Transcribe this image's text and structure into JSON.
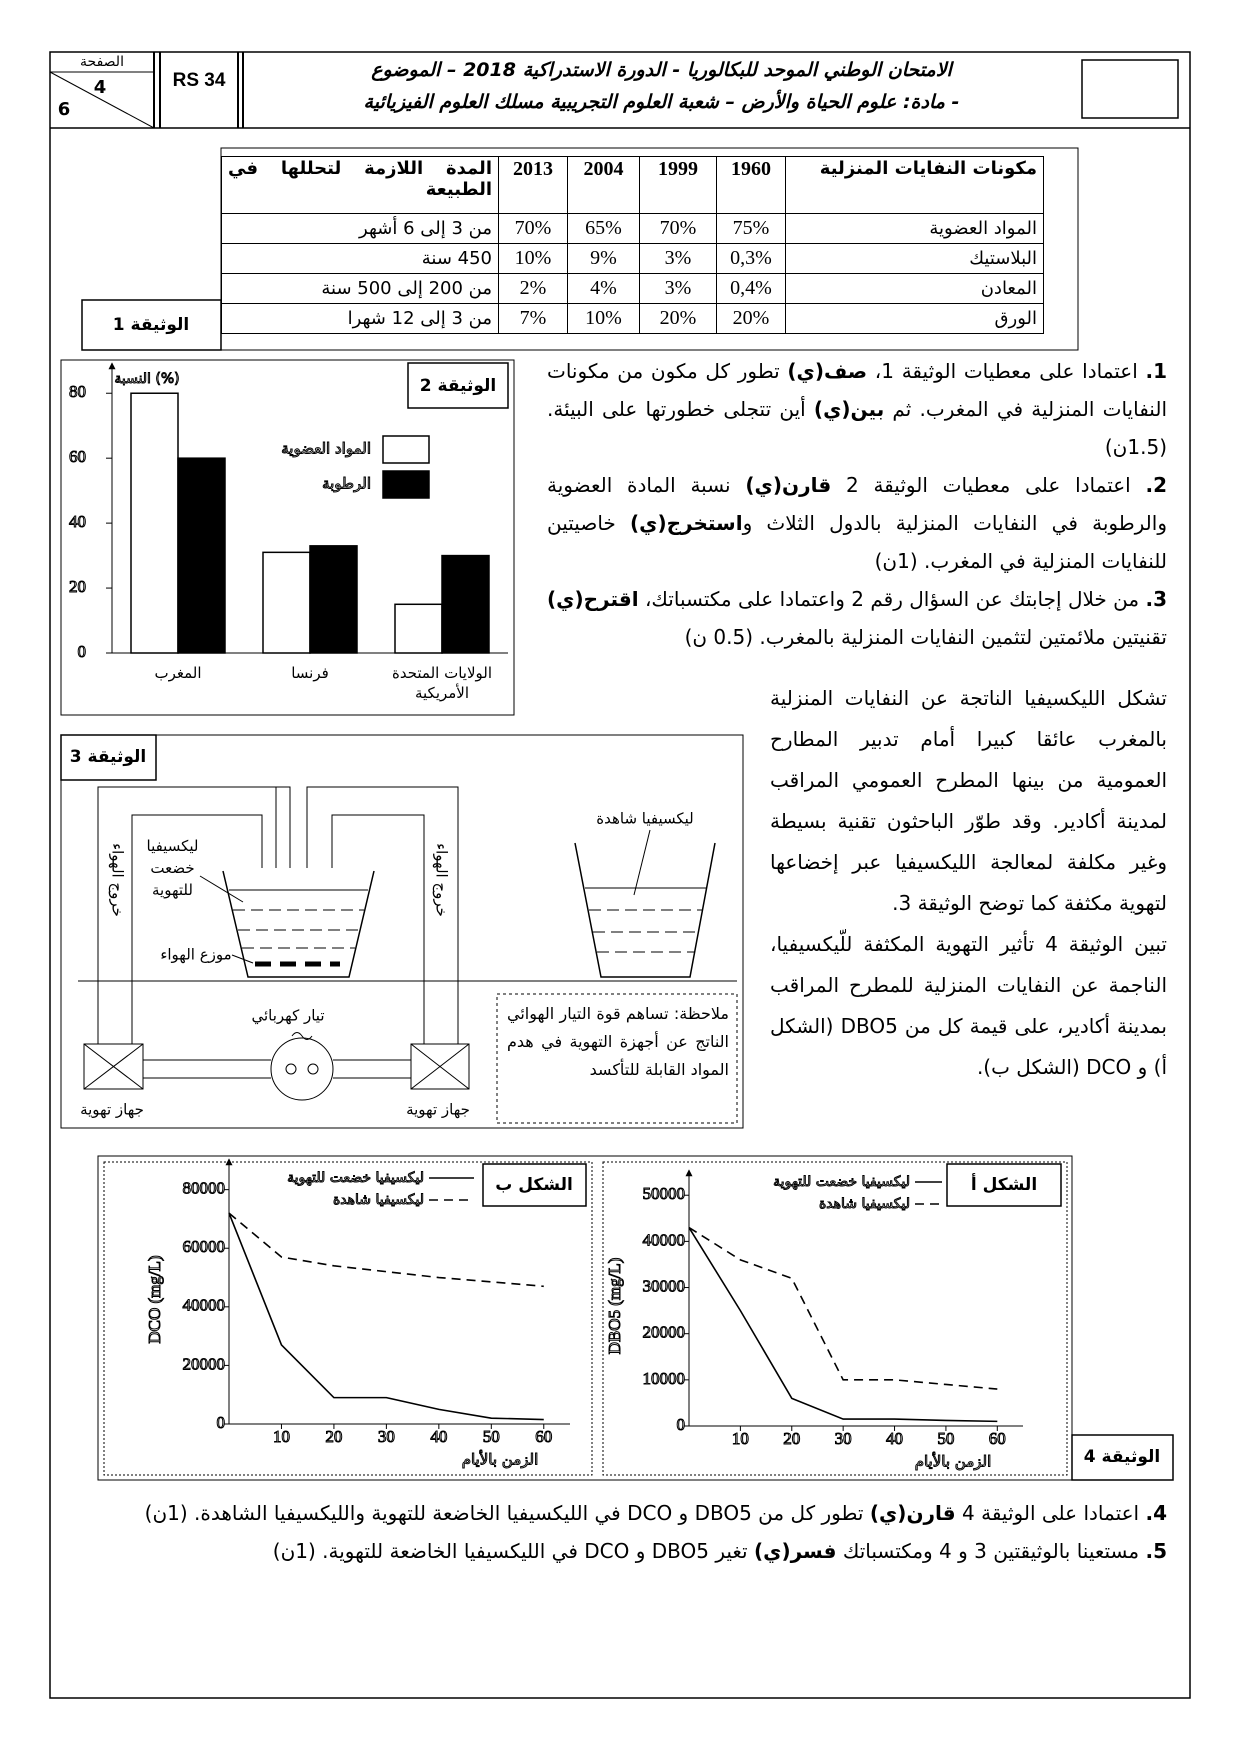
{
  "header": {
    "page_label": "الصفحة",
    "page_number": "4",
    "total_pages": "6",
    "code": "RS 34",
    "title_line1": "الامتحان الوطني الموحد للبكالوريا - الدورة الاستدراكية 2018 – الموضوع",
    "title_line2": "- مادة: علوم الحياة والأرض – شعبة العلوم التجريبية مسلك العلوم الفيزيائية"
  },
  "document1": {
    "label": "الوثيقة 1",
    "columns": [
      "مكونات النفايات المنزلية",
      "1960",
      "1999",
      "2004",
      "2013",
      "المدة اللازمة لتحللها في الطبيعة"
    ],
    "rows": [
      [
        "المواد العضوية",
        "75%",
        "70%",
        "65%",
        "70%",
        "من 3 إلى 6 أشهر"
      ],
      [
        "البلاستيك",
        "0,3%",
        "3%",
        "9%",
        "10%",
        "450 سنة"
      ],
      [
        "المعادن",
        "0,4%",
        "3%",
        "4%",
        "2%",
        "من 200 إلى 500 سنة"
      ],
      [
        "الورق",
        "20%",
        "20%",
        "10%",
        "7%",
        "من 3 إلى 12 شهرا"
      ]
    ]
  },
  "document2": {
    "label": "الوثيقة 2",
    "chart": {
      "type": "bar",
      "ylabel": "النسبة (%)",
      "categories": [
        "المغرب",
        "فرنسا",
        "الولايات المتحدة الأمريكية"
      ],
      "series": [
        {
          "name": "المواد العضوية",
          "color": "#ffffff",
          "values": [
            80,
            31,
            15
          ]
        },
        {
          "name": "الرطوبة",
          "color": "#000000",
          "values": [
            60,
            33,
            30
          ]
        }
      ],
      "ylim": [
        0,
        85
      ],
      "yticks": [
        0,
        20,
        40,
        60,
        80
      ]
    }
  },
  "questions_part1": [
    {
      "number": "1.",
      "segments": [
        "اعتمادا على معطيات الوثيقة 1، ",
        "صف(ي)",
        " تطور كل مكون من مكونات النفايات المنزلية في المغرب. ثم ",
        "بين(ي)",
        " أين تتجلى خطورتها على البيئة. (1.5ن)"
      ]
    },
    {
      "number": "2.",
      "segments": [
        "اعتمادا على معطيات الوثيقة 2 ",
        "قارن(ي)",
        " نسبة المادة العضوية والرطوبة في النفايات المنزلية بالدول الثلاث و",
        "استخرج(ي)",
        " خاصيتين للنفايات المنزلية في المغرب. (1ن)"
      ]
    },
    {
      "number": "3.",
      "segments": [
        "من خلال إجابتك عن السؤال رقم 2 واعتمادا على مكتسباتك، ",
        "اقترح(ي)",
        " تقنيتين ملائمتين لتثمين النفايات المنزلية بالمغرب. (0.5 ن)"
      ]
    }
  ],
  "paragraphs": [
    "تشكل الليكسيفيا الناتجة عن النفايات المنزلية بالمغرب عائقا كبيرا أمام تدبير المطارح العمومية من بينها المطرح العمومي المراقب لمدينة أكادير. وقد طوّر الباحثون تقنية بسيطة وغير مكلفة لمعالجة الليكسيفيا عبر إخضاعها لتهوية مكثفة كما توضح الوثيقة 3.",
    "تبين الوثيقة 4 تأثير التهوية المكثفة للّيكسيفيا، الناجمة عن النفايات المنزلية للمطرح المراقب بمدينة أكادير، على قيمة كل من DBO5 (الشكل أ) و DCO (الشكل ب)."
  ],
  "document3": {
    "label": "الوثيقة 3",
    "treated_leachate": "ليكسيفيا خضعت للتهوية",
    "air_outlet_left": "خروج الهواء",
    "air_outlet_right": "خروج الهواء",
    "air_distributor": "موزع الهواء",
    "electric_current": "تيار كهربائي",
    "aerator_left": "جهاز تهوية",
    "aerator_right": "جهاز تهوية",
    "witness_leachate": "ليكسيفيا شاهدة",
    "note": "ملاحظة: تساهم قوة التيار الهوائي الناتج عن أجهزة التهوية في هدم المواد القابلة للتأكسد"
  },
  "document4": {
    "label": "الوثيقة 4",
    "figure_b": {
      "type": "line",
      "title": "الشكل ب",
      "ylabel": "DCO (mg/L)",
      "xlabel": "الزمن بالأيام",
      "x": [
        0,
        10,
        20,
        30,
        40,
        50,
        60
      ],
      "series": [
        {
          "name": "ليكسيفيا خضعت للتهوية",
          "style": "solid",
          "values": [
            72000,
            27000,
            9000,
            9000,
            5000,
            2000,
            1500
          ]
        },
        {
          "name": "ليكسيفيا شاهدة",
          "style": "dashed",
          "values": [
            72000,
            57000,
            54000,
            52000,
            50000,
            48500,
            47000
          ]
        }
      ],
      "xlim": [
        0,
        65
      ],
      "ylim": [
        0,
        85000
      ],
      "xticks": [
        10,
        20,
        30,
        40,
        50,
        60
      ],
      "yticks": [
        0,
        20000,
        40000,
        60000,
        80000
      ]
    },
    "figure_a": {
      "type": "line",
      "title": "الشكل أ",
      "ylabel": "DBO5 (mg/L)",
      "xlabel": "الزمن بالأيام",
      "x": [
        0,
        10,
        20,
        30,
        40,
        50,
        60
      ],
      "series": [
        {
          "name": "ليكسيفيا خضعت للتهوية",
          "style": "solid",
          "values": [
            43000,
            25000,
            6000,
            1500,
            1500,
            1200,
            1000
          ]
        },
        {
          "name": "ليكسيفيا شاهدة",
          "style": "dashed",
          "values": [
            43000,
            36000,
            32000,
            10000,
            10000,
            9000,
            8000
          ]
        }
      ],
      "xlim": [
        0,
        65
      ],
      "ylim": [
        0,
        52000
      ],
      "xticks": [
        10,
        20,
        30,
        40,
        50,
        60
      ],
      "yticks": [
        0,
        10000,
        20000,
        30000,
        40000,
        50000
      ]
    }
  },
  "questions_part2": [
    {
      "number": "4.",
      "segments": [
        "اعتمادا على الوثيقة 4 ",
        "قارن(ي)",
        " تطور كل من DBO5 و DCO في الليكسيفيا الخاضعة للتهوية والليكسيفيا الشاهدة. (1ن)"
      ]
    },
    {
      "number": "5.",
      "segments": [
        "مستعينا بالوثيقتين 3 و 4 ومكتسباتك ",
        "فسر(ي)",
        " تغير DBO5 و DCO في الليكسيفيا الخاضعة للتهوية. (1ن)"
      ]
    }
  ]
}
